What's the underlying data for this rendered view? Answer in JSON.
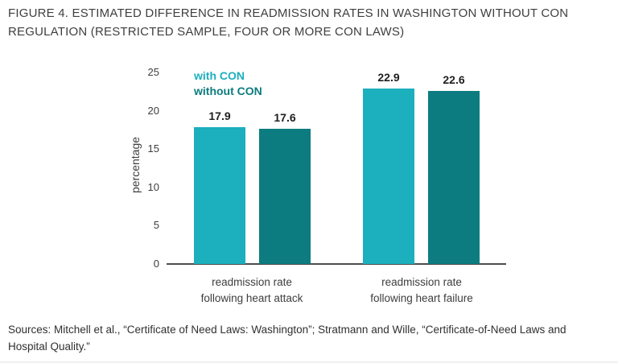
{
  "figure": {
    "title": "FIGURE 4. ESTIMATED DIFFERENCE IN READMISSION RATES IN WASHINGTON WITHOUT CON\nREGULATION (RESTRICTED SAMPLE, FOUR OR MORE CON LAWS)",
    "sources": "Sources: Mitchell et al., “Certificate of Need Laws: Washington”; Stratmann and Wille, “Certificate-of-Need Laws and\nHospital Quality.”"
  },
  "chart_data": {
    "type": "bar",
    "title": "Estimated difference in readmission rates in Washington without CON regulation",
    "categories": [
      "readmission rate\nfollowing heart attack",
      "readmission rate\nfollowing heart failure"
    ],
    "series": [
      {
        "name": "with CON",
        "color": "#1CAFBE",
        "values": [
          17.9,
          22.9
        ]
      },
      {
        "name": "without CON",
        "color": "#0D7C80",
        "values": [
          17.6,
          22.6
        ]
      }
    ],
    "xlabel": "",
    "ylabel": "percentage",
    "ylim": [
      0,
      25
    ],
    "yticks": [
      0,
      5,
      10,
      15,
      20,
      25
    ],
    "grid": false,
    "legend_position": "top-left",
    "value_label_format": "one-decimal"
  },
  "colors": {
    "with_con": "#1CAFBE",
    "without_con": "#0D7C80",
    "title_text": "#3F3F3F",
    "axis_line": "#4D4D4D",
    "tick_text": "#3D3D3D"
  }
}
